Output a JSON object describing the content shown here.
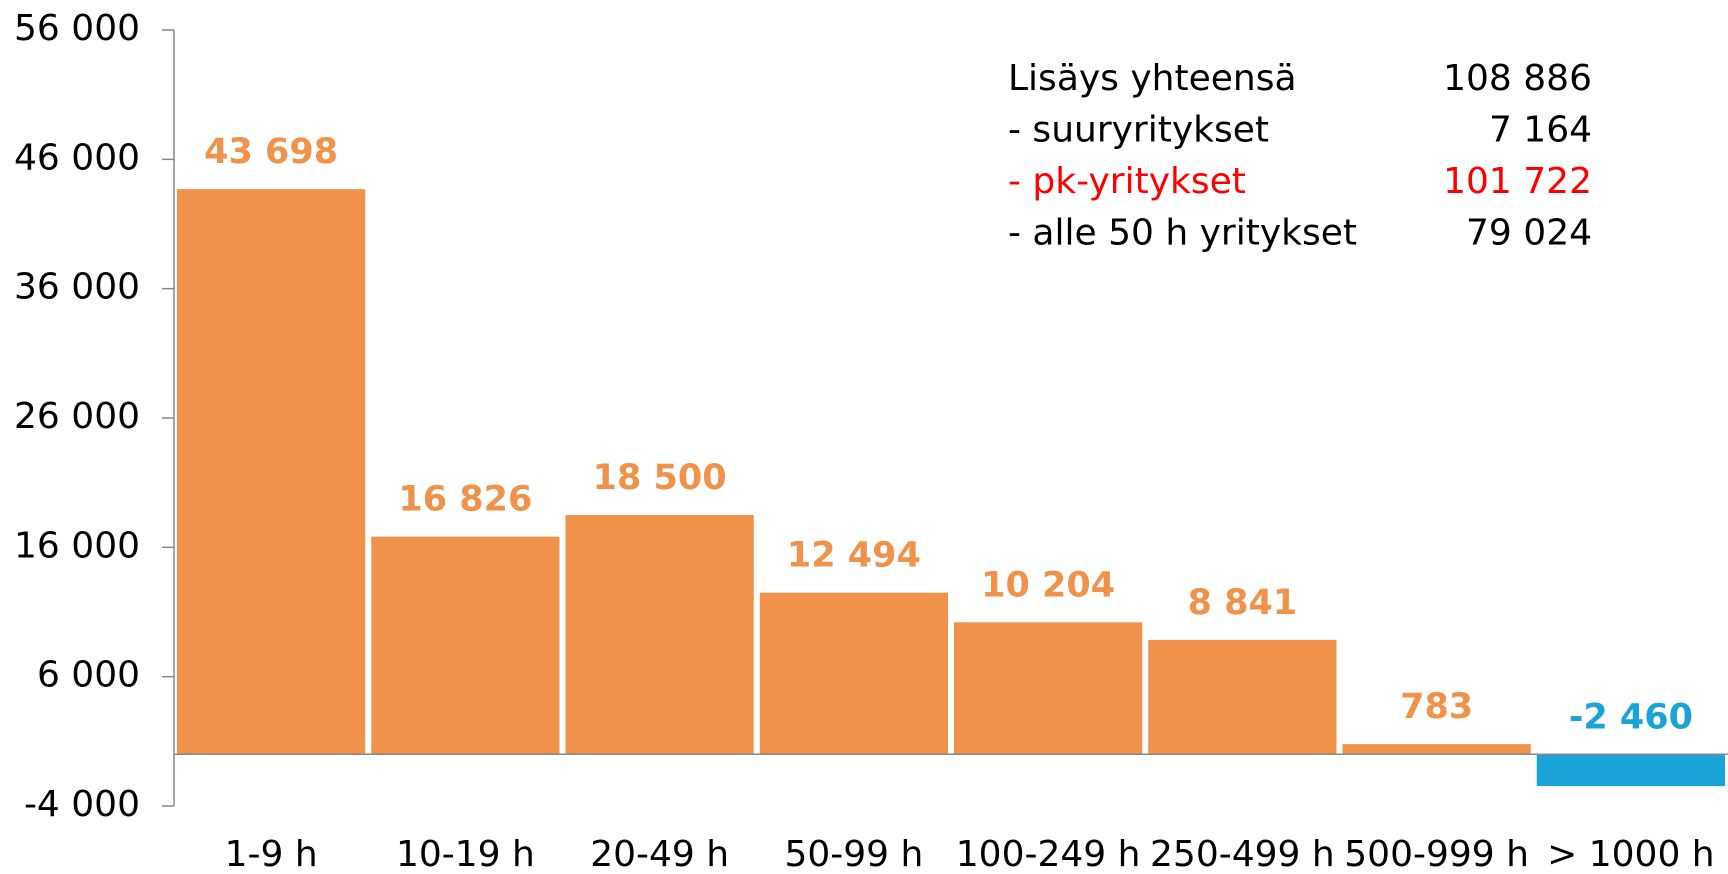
{
  "chart_data": {
    "type": "bar",
    "categories": [
      "1-9 h",
      "10-19 h",
      "20-49 h",
      "50-99 h",
      "100-249 h",
      "250-499 h",
      "500-999 h",
      "> 1000 h"
    ],
    "values": [
      43698,
      16826,
      18500,
      12494,
      10204,
      8841,
      783,
      -2460
    ],
    "value_labels": [
      "43 698",
      "16 826",
      "18 500",
      "12 494",
      "10 204",
      "8 841",
      "783",
      "-2 460"
    ],
    "colors": [
      "#f0924a",
      "#f0924a",
      "#f0924a",
      "#f0924a",
      "#f0924a",
      "#f0924a",
      "#f0924a",
      "#1aa3d9"
    ],
    "ylim": [
      -4000,
      56000
    ],
    "yticks": [
      {
        "value": -4000,
        "label": "-4 000"
      },
      {
        "value": 6000,
        "label": "6 000"
      },
      {
        "value": 16000,
        "label": "16 000"
      },
      {
        "value": 26000,
        "label": "26 000"
      },
      {
        "value": 36000,
        "label": "36 000"
      },
      {
        "value": 46000,
        "label": "46 000"
      },
      {
        "value": 56000,
        "label": "56 000"
      }
    ],
    "grid": false,
    "summary": [
      {
        "label": "Lisäys yhteensä",
        "amount": "108 886",
        "color": "#000000"
      },
      {
        "label": "-  suuryritykset",
        "amount": "7 164",
        "color": "#000000"
      },
      {
        "label": "-  pk-yritykset",
        "amount": "101 722",
        "color": "#ff0000"
      },
      {
        "label": "-  alle 50 h yritykset",
        "amount": "79 024",
        "color": "#000000"
      }
    ]
  }
}
